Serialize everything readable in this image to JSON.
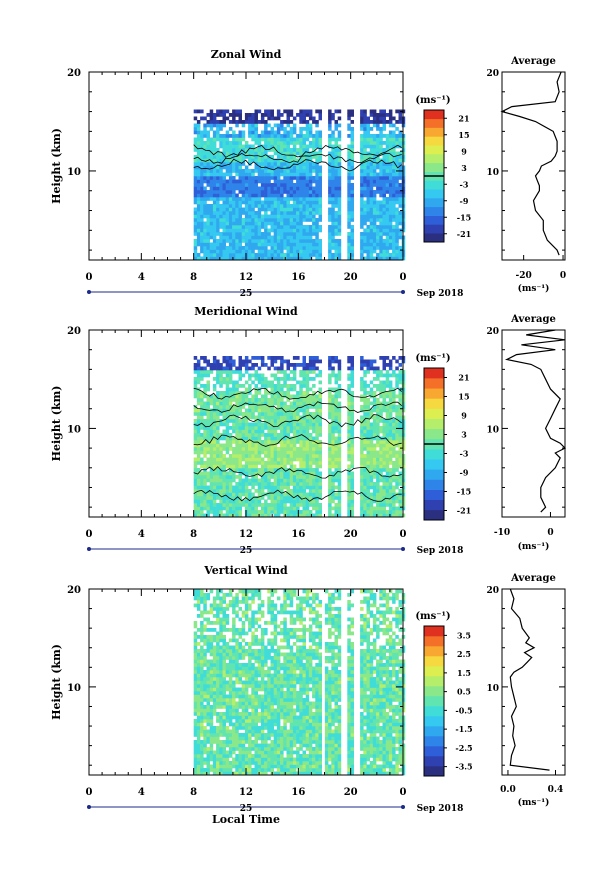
{
  "figure": {
    "xlabel": "Local Time",
    "date_label": "Sep 2018",
    "day_label": "25",
    "ylabel": "Height (km)"
  },
  "colors": {
    "colorbar": [
      "#2a2f80",
      "#2f40b0",
      "#2f5fd8",
      "#2f84ea",
      "#30a8f0",
      "#35c8f0",
      "#40dcd8",
      "#60e4b0",
      "#8ae88a",
      "#b4ee6a",
      "#dcee50",
      "#f6d840",
      "#f8a830",
      "#f47028",
      "#e03020"
    ],
    "cut_line": "#000000",
    "contour": "#000000"
  },
  "chart_data": [
    {
      "type": "heatmap",
      "id": "zonal",
      "title": "Zonal Wind",
      "unit_label": "(ms⁻¹)",
      "x_ticks": [
        "0",
        "4",
        "8",
        "12",
        "16",
        "20",
        "0"
      ],
      "x_tick_values": [
        0,
        4,
        8,
        12,
        16,
        20,
        24
      ],
      "xlim": [
        0,
        24
      ],
      "y_ticks": [
        "20",
        "10"
      ],
      "y_tick_values": [
        20,
        10
      ],
      "ylim": [
        1,
        20
      ],
      "data_start_hour": 8,
      "data_top_km": 16.5,
      "gaps_hours": [
        [
          17.6,
          18.1
        ],
        [
          19.1,
          19.5
        ],
        [
          20.2,
          20.7
        ]
      ],
      "colorbar_ticks": [
        "21",
        "15",
        "9",
        "3",
        "-3",
        "-9",
        "-15",
        "-21"
      ],
      "colorbar_values": [
        21,
        15,
        9,
        3,
        -3,
        -9,
        -15,
        -21
      ],
      "colorbar_range": [
        -24,
        24
      ],
      "colorbar_marker": 0,
      "profile_heights_km": [
        20,
        19,
        18,
        17,
        16.5,
        16,
        15.5,
        15,
        14,
        13,
        12,
        11.5,
        11,
        10.5,
        10,
        9.5,
        9,
        8.5,
        8,
        7,
        6,
        5,
        4,
        3,
        2,
        1.5
      ],
      "profile_values": [
        -1,
        -3,
        -2,
        -4,
        -26,
        -31,
        -22,
        -14,
        -5,
        -3,
        -3,
        -4,
        -6,
        -11,
        -12,
        -14,
        -13,
        -12,
        -12,
        -15,
        -14,
        -10,
        -10,
        -8,
        -3,
        -2
      ],
      "profile_title": "Average",
      "profile_ticks": [
        "-20",
        "0"
      ],
      "profile_tick_values": [
        -20,
        0
      ],
      "profile_xlim": [
        -31,
        1
      ],
      "profile_unit": "(ms⁻¹)",
      "profile_y_ticks": [
        "20",
        "10"
      ]
    },
    {
      "type": "heatmap",
      "id": "meridional",
      "title": "Meridional Wind",
      "unit_label": "(ms⁻¹)",
      "x_ticks": [
        "0",
        "4",
        "8",
        "12",
        "16",
        "20",
        "0"
      ],
      "x_tick_values": [
        0,
        4,
        8,
        12,
        16,
        20,
        24
      ],
      "xlim": [
        0,
        24
      ],
      "y_ticks": [
        "20",
        "10"
      ],
      "y_tick_values": [
        20,
        10
      ],
      "ylim": [
        1,
        20
      ],
      "data_start_hour": 8,
      "data_top_km": 17.5,
      "gaps_hours": [
        [
          17.6,
          18.1
        ],
        [
          19.1,
          19.5
        ],
        [
          20.2,
          20.7
        ]
      ],
      "colorbar_ticks": [
        "21",
        "15",
        "9",
        "3",
        "-3",
        "-9",
        "-15",
        "-21"
      ],
      "colorbar_values": [
        21,
        15,
        9,
        3,
        -3,
        -9,
        -15,
        -21
      ],
      "colorbar_range": [
        -24,
        24
      ],
      "colorbar_marker": 0,
      "profile_heights_km": [
        20,
        19.5,
        19,
        18.5,
        18,
        17.5,
        17,
        16.5,
        16,
        15,
        14,
        13,
        12,
        11,
        10,
        9,
        8.5,
        8,
        7.5,
        7,
        6,
        5,
        4,
        3,
        2,
        1.5
      ],
      "profile_values": [
        1,
        -5,
        3,
        -6,
        1,
        -7,
        -9,
        -4,
        -2,
        -1,
        0,
        2,
        1,
        0,
        -1,
        0,
        2,
        3,
        1,
        2,
        1,
        -1,
        -2,
        -2,
        -1,
        -2
      ],
      "profile_title": "Average",
      "profile_ticks": [
        "-10",
        "0"
      ],
      "profile_tick_values": [
        -10,
        0
      ],
      "profile_xlim": [
        -10,
        3
      ],
      "profile_unit": "(ms⁻¹)",
      "profile_y_ticks": [
        "20",
        "10"
      ]
    },
    {
      "type": "heatmap",
      "id": "vertical",
      "title": "Vertical Wind",
      "unit_label": "(ms⁻¹)",
      "x_ticks": [
        "0",
        "4",
        "8",
        "12",
        "16",
        "20",
        "0"
      ],
      "x_tick_values": [
        0,
        4,
        8,
        12,
        16,
        20,
        24
      ],
      "xlim": [
        0,
        24
      ],
      "y_ticks": [
        "20",
        "10"
      ],
      "y_tick_values": [
        20,
        10
      ],
      "ylim": [
        1,
        20
      ],
      "data_start_hour": 8,
      "data_top_km": 20,
      "gaps_hours": [
        [
          17.6,
          18.0
        ],
        [
          19.1,
          19.5
        ],
        [
          20.2,
          20.6
        ]
      ],
      "colorbar_ticks": [
        "3.5",
        "2.5",
        "1.5",
        "0.5",
        "-0.5",
        "-1.5",
        "-2.5",
        "-3.5"
      ],
      "colorbar_values": [
        3.5,
        2.5,
        1.5,
        0.5,
        -0.5,
        -1.5,
        -2.5,
        -3.5
      ],
      "colorbar_range": [
        -4,
        4
      ],
      "colorbar_marker": null,
      "profile_heights_km": [
        20,
        19,
        18,
        17,
        16,
        15,
        14.5,
        14,
        13.5,
        13,
        12.5,
        12,
        11.5,
        11,
        10,
        9,
        8,
        7,
        6,
        5,
        4,
        3,
        2,
        1.5
      ],
      "profile_values": [
        0.02,
        0.05,
        0.03,
        0.1,
        0.12,
        0.18,
        0.15,
        0.22,
        0.14,
        0.2,
        0.16,
        0.12,
        0.05,
        0.02,
        0.03,
        0.05,
        0.07,
        0.03,
        0.05,
        0.04,
        0.06,
        0.03,
        0.02,
        0.35
      ],
      "profile_title": "Average",
      "profile_ticks": [
        "0.0",
        "0.4"
      ],
      "profile_tick_values": [
        0,
        0.4
      ],
      "profile_xlim": [
        -0.05,
        0.48
      ],
      "profile_unit": "(ms⁻¹)",
      "profile_y_ticks": [
        "20",
        "10"
      ]
    }
  ]
}
